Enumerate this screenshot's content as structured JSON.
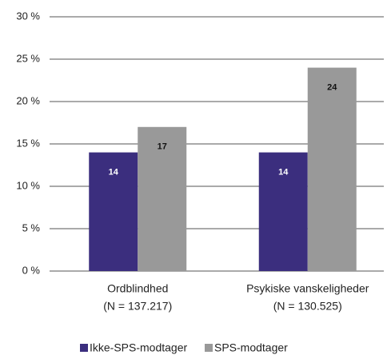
{
  "chart_data": {
    "type": "bar",
    "categories": [
      [
        "Ordblindhed",
        "(N = 137.217)"
      ],
      [
        "Psykiske vanskeligheder",
        "(N = 130.525)"
      ]
    ],
    "series": [
      {
        "name": "Ikke-SPS-modtager",
        "color": "#3b2e7e",
        "values": [
          14,
          14
        ]
      },
      {
        "name": "SPS-modtager",
        "color": "#999999",
        "values": [
          17,
          24
        ]
      }
    ],
    "ylim": [
      0,
      30
    ],
    "yticks": [
      {
        "value": 0,
        "label": "0 %"
      },
      {
        "value": 5,
        "label": "5 %"
      },
      {
        "value": 10,
        "label": "10 %"
      },
      {
        "value": 15,
        "label": "15 %"
      },
      {
        "value": 20,
        "label": "20 %"
      },
      {
        "value": 25,
        "label": "25 %"
      },
      {
        "value": 30,
        "label": "30 %"
      }
    ],
    "grid": true,
    "legend": "bottom"
  }
}
